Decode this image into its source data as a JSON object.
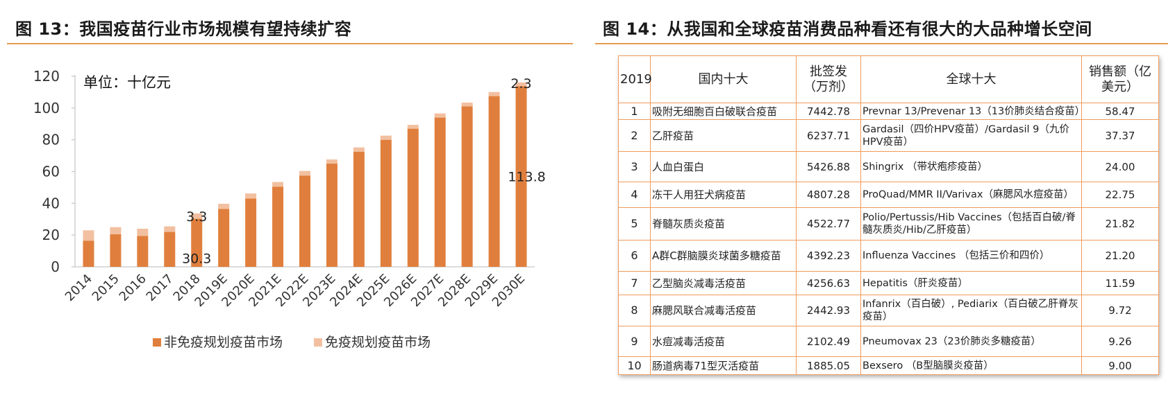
{
  "left_figure": {
    "title": "图 13：我国疫苗行业市场规模有望持续扩容"
  },
  "right_figure": {
    "title": "图 14：从我国和全球疫苗消费品种看还有很大的大品种增长空间"
  },
  "chart_data": {
    "type": "bar",
    "stacked": true,
    "unit_label": "单位：十亿元",
    "categories": [
      "2014",
      "2015",
      "2016",
      "2017",
      "2018",
      "2019E",
      "2020E",
      "2021E",
      "2022E",
      "2023E",
      "2024E",
      "2025E",
      "2026E",
      "2027E",
      "2028E",
      "2029E",
      "2030E"
    ],
    "series": [
      {
        "name": "非免疫规划疫苗市场",
        "color": "#e07f3d",
        "values": [
          16.5,
          20.5,
          19.5,
          22,
          30.3,
          36.5,
          43,
          50.5,
          57.5,
          65,
          72.5,
          80,
          87,
          94,
          101,
          107.5,
          113.8
        ]
      },
      {
        "name": "免疫规划疫苗市场",
        "color": "#f2c0a0",
        "values": [
          6.5,
          4.5,
          4.5,
          3.5,
          3.3,
          3.2,
          3.2,
          2.9,
          2.9,
          2.6,
          2.7,
          2.6,
          2.4,
          2.6,
          2.4,
          2.6,
          2.3
        ]
      }
    ],
    "annotations": [
      {
        "category": "2018",
        "series": "非免疫规划疫苗市场",
        "label": "30.3"
      },
      {
        "category": "2018",
        "series": "免疫规划疫苗市场",
        "label": "3.3"
      },
      {
        "category": "2030E",
        "series": "非免疫规划疫苗市场",
        "label": "113.8"
      },
      {
        "category": "2030E",
        "series": "免疫规划疫苗市场",
        "label": "2.3"
      }
    ],
    "ylim": [
      0,
      120
    ],
    "yticks": [
      0,
      20,
      40,
      60,
      80,
      100,
      120
    ],
    "legend_position": "bottom"
  },
  "table": {
    "headers": [
      "2019",
      "国内十大",
      "批签发（万剂）",
      "全球十大",
      "销售额（亿美元）"
    ],
    "rows": [
      {
        "rank": "1",
        "domestic": "吸附无细胞百白破联合疫苗",
        "batches": "7442.78",
        "global": "Prevnar 13/Prevenar 13（13价肺炎结合疫苗）",
        "sales": "58.47"
      },
      {
        "rank": "2",
        "domestic": "乙肝疫苗",
        "batches": "6237.71",
        "global": "Gardasil（四价HPV疫苗）/Gardasil 9（九价HPV疫苗）",
        "sales": "37.37"
      },
      {
        "rank": "3",
        "domestic": "人血白蛋白",
        "batches": "5426.88",
        "global": "Shingrix （带状疱疹疫苗）",
        "sales": "24.00"
      },
      {
        "rank": "4",
        "domestic": "冻干人用狂犬病疫苗",
        "batches": "4807.28",
        "global": "ProQuad/MMR II/Varivax（麻腮风水痘疫苗）",
        "sales": "22.75"
      },
      {
        "rank": "5",
        "domestic": "脊髓灰质炎疫苗",
        "batches": "4522.77",
        "global": "Polio/Pertussis/Hib Vaccines（包括百白破/脊髓灰质炎/Hib/乙肝疫苗）",
        "sales": "21.82"
      },
      {
        "rank": "6",
        "domestic": "A群C群脑膜炎球菌多糖疫苗",
        "batches": "4392.23",
        "global": "Influenza Vaccines （包括三价和四价）",
        "sales": "21.20"
      },
      {
        "rank": "7",
        "domestic": "乙型脑炎减毒活疫苗",
        "batches": "4256.63",
        "global": "Hepatitis（肝炎疫苗）",
        "sales": "11.59"
      },
      {
        "rank": "8",
        "domestic": "麻腮风联合减毒活疫苗",
        "batches": "2442.93",
        "global": "Infanrix（百白破）, Pediarix（百白破乙肝脊灰疫苗）",
        "sales": "9.72"
      },
      {
        "rank": "9",
        "domestic": "水痘减毒活疫苗",
        "batches": "2102.49",
        "global": "Pneumovax 23（23价肺炎多糖疫苗）",
        "sales": "9.26"
      },
      {
        "rank": "10",
        "domestic": "肠道病毒71型灭活疫苗",
        "batches": "1885.05",
        "global": "Bexsero （B型脑膜炎疫苗）",
        "sales": "9.00"
      }
    ]
  }
}
